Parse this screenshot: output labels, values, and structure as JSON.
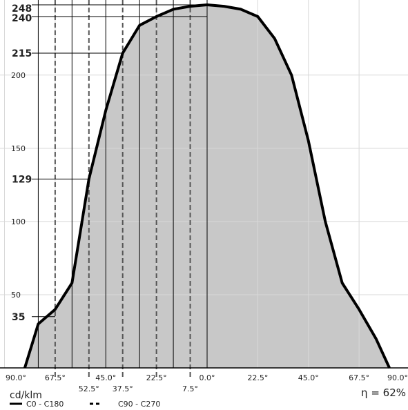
{
  "chart_data": {
    "type": "area",
    "unit_label": "cd/klm",
    "efficiency_label": "η = 62%",
    "legend": [
      {
        "label": "C0 - C180",
        "style": "solid",
        "color": "#000000"
      },
      {
        "label": "C90 - C270",
        "style": "dashed",
        "color": "#000000"
      }
    ],
    "fill_color": "#c8c8c8",
    "x_range": [
      -90,
      90
    ],
    "y_range": [
      0,
      248
    ],
    "x_ticks": [
      {
        "value": -90,
        "label": "90.0°"
      },
      {
        "value": -67.5,
        "label": "67.5°"
      },
      {
        "value": -45,
        "label": "45.0°"
      },
      {
        "value": -22.5,
        "label": "22.5°"
      },
      {
        "value": 0,
        "label": "0.0°"
      },
      {
        "value": 22.5,
        "label": "22.5°"
      },
      {
        "value": 45,
        "label": "45.0°"
      },
      {
        "value": 67.5,
        "label": "67.5°"
      },
      {
        "value": 90,
        "label": "90.0°"
      }
    ],
    "extra_x_labels": [
      {
        "value": -52.5,
        "label": "52.5°"
      },
      {
        "value": -37.5,
        "label": "37.5°"
      },
      {
        "value": -7.5,
        "label": "7.5°"
      }
    ],
    "y_ticks": [
      {
        "value": 50,
        "label": "50"
      },
      {
        "value": 100,
        "label": "100"
      },
      {
        "value": 150,
        "label": "150"
      },
      {
        "value": 200,
        "label": "200"
      }
    ],
    "highlighted_y_values": [
      {
        "value": 248,
        "label": "248"
      },
      {
        "value": 240,
        "label": "240"
      },
      {
        "value": 215,
        "label": "215"
      },
      {
        "value": 129,
        "label": "129"
      },
      {
        "value": 35,
        "label": "35"
      }
    ],
    "solid_guide_angles": [
      -75,
      -60,
      -45,
      -30,
      -15,
      0
    ],
    "dashed_guide_angles": [
      -67.5,
      -52.5,
      -37.5,
      -22.5,
      -7.5
    ],
    "series": [
      {
        "name": "C0 - C180",
        "x": [
          -81,
          -75,
          -67.5,
          -60,
          -52.5,
          -45,
          -37.5,
          -30,
          -22.5,
          -15,
          -7.5,
          0,
          7.5,
          15,
          22.5,
          30,
          37.5,
          45,
          52.5,
          60,
          67.5,
          75,
          81
        ],
        "y": [
          0,
          30,
          40,
          58,
          129,
          176,
          215,
          234,
          240,
          245,
          247,
          248,
          247,
          245,
          240,
          225,
          200,
          155,
          100,
          58,
          40,
          20,
          0
        ]
      }
    ]
  }
}
